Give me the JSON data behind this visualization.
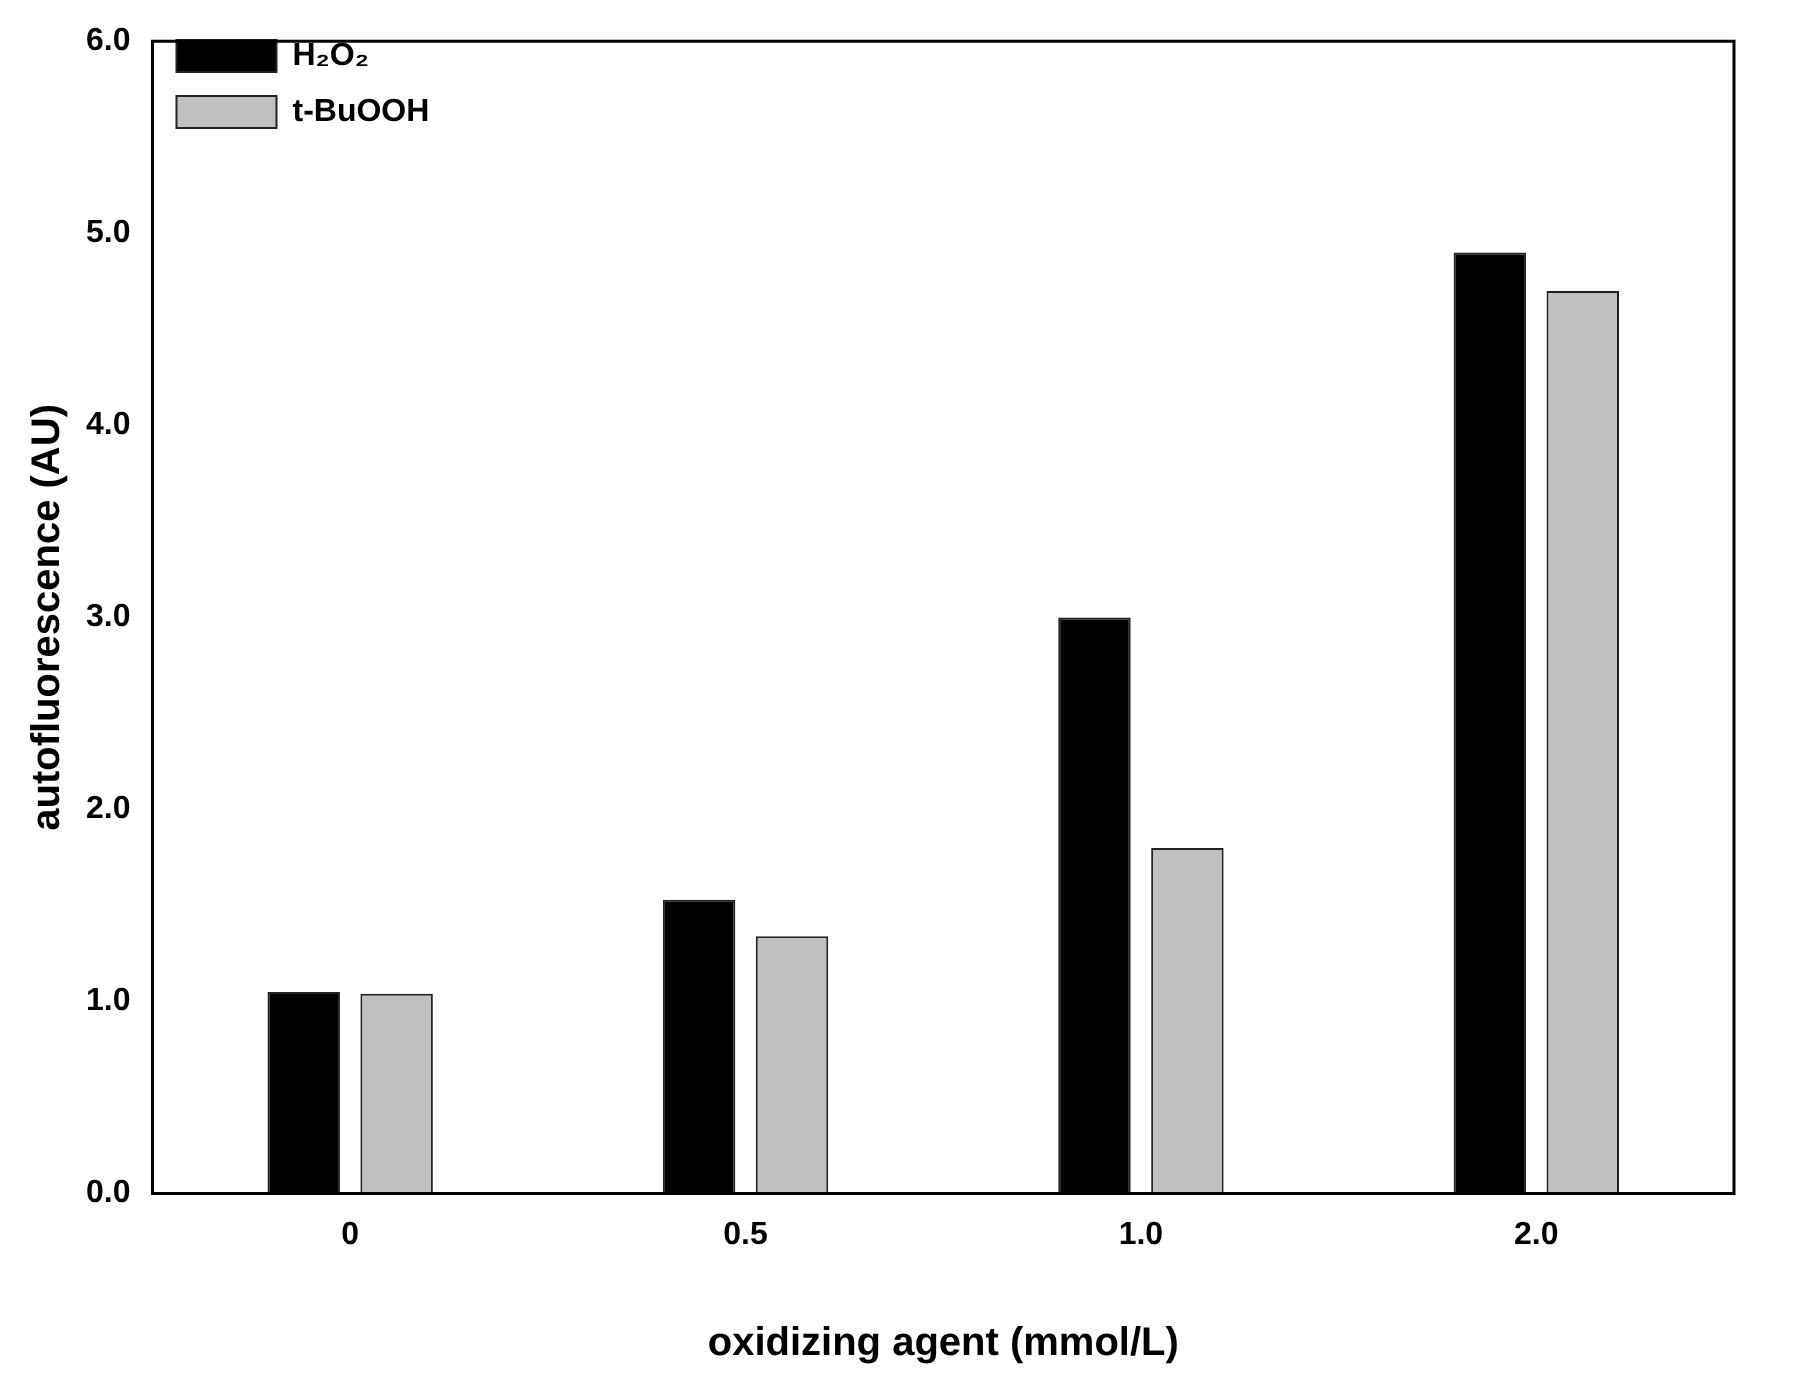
{
  "chart_data": {
    "type": "bar",
    "xlabel": "oxidizing agent (mmol/L)",
    "ylabel": "autofluorescence (AU)",
    "categories": [
      "0",
      "0.5",
      "1.0",
      "2.0"
    ],
    "series": [
      {
        "name": "H₂O₂",
        "color": "#000000",
        "values": [
          1.05,
          1.53,
          3.0,
          4.9
        ]
      },
      {
        "name": "t-BuOOH",
        "color": "#c0c0c0",
        "values": [
          1.04,
          1.34,
          1.8,
          4.7
        ]
      }
    ],
    "ylim": [
      0,
      6
    ],
    "yticks": [
      {
        "value": 0,
        "label": "0.0"
      },
      {
        "value": 1,
        "label": "1.0"
      },
      {
        "value": 2,
        "label": "2.0"
      },
      {
        "value": 3,
        "label": "3.0"
      },
      {
        "value": 4,
        "label": "4.0"
      },
      {
        "value": 5,
        "label": "5.0"
      },
      {
        "value": 6,
        "label": "6.0"
      }
    ],
    "grid": false,
    "legend": "top left"
  }
}
